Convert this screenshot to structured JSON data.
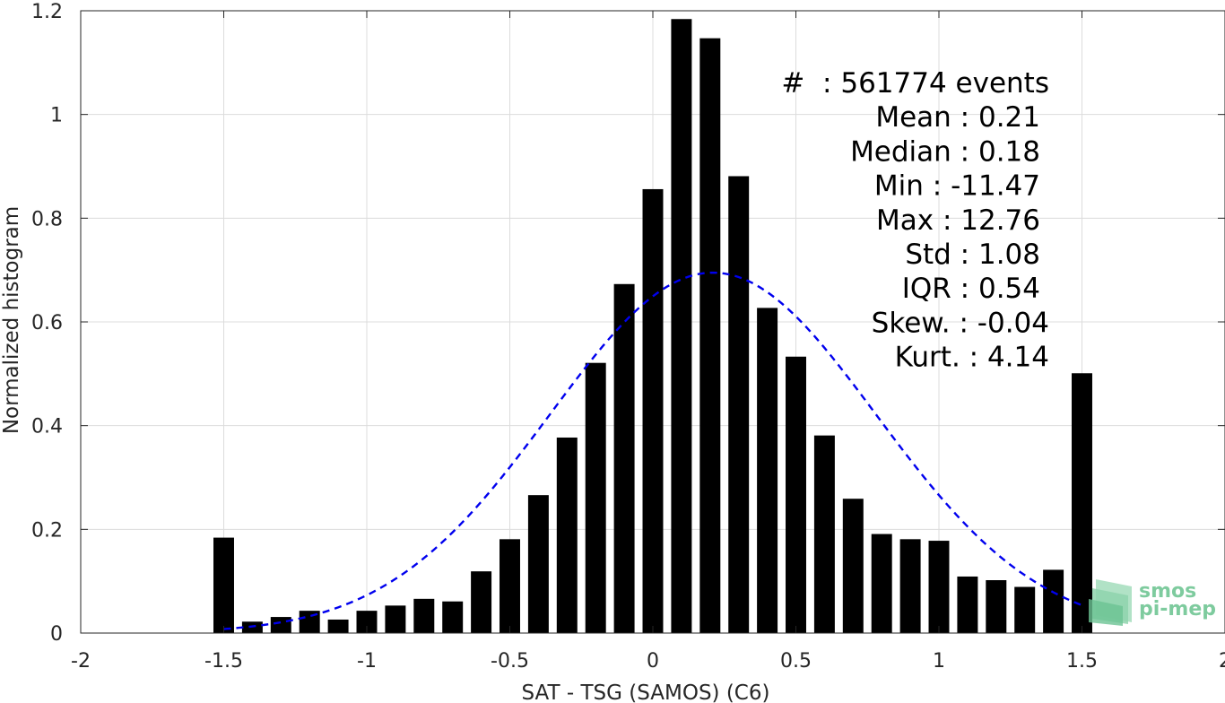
{
  "chart_data": {
    "type": "bar",
    "xlabel": "SAT - TSG (SAMOS) (C6)",
    "ylabel": "Normalized histogram",
    "xlim": [
      -2,
      2
    ],
    "ylim": [
      0,
      1.2
    ],
    "xticks": [
      -2,
      -1.5,
      -1,
      -0.5,
      0,
      0.5,
      1,
      1.5,
      2
    ],
    "xtick_labels": [
      "-2",
      "-1.5",
      "-1",
      "-0.5",
      "0",
      "0.5",
      "1",
      "1.5",
      "2"
    ],
    "yticks": [
      0,
      0.2,
      0.4,
      0.6,
      0.8,
      1,
      1.2
    ],
    "ytick_labels": [
      "0",
      "0.2",
      "0.4",
      "0.6",
      "0.8",
      "1",
      "1.2"
    ],
    "grid": true,
    "bar_color": "#000000",
    "bin_width": 0.1,
    "x": [
      -1.5,
      -1.4,
      -1.3,
      -1.2,
      -1.1,
      -1.0,
      -0.9,
      -0.8,
      -0.7,
      -0.6,
      -0.5,
      -0.4,
      -0.3,
      -0.2,
      -0.1,
      0.0,
      0.1,
      0.2,
      0.3,
      0.4,
      0.5,
      0.6,
      0.7,
      0.8,
      0.9,
      1.0,
      1.1,
      1.2,
      1.3,
      1.4,
      1.5
    ],
    "values": [
      0.184,
      0.022,
      0.031,
      0.043,
      0.026,
      0.043,
      0.053,
      0.066,
      0.061,
      0.119,
      0.181,
      0.266,
      0.377,
      0.521,
      0.673,
      0.856,
      1.184,
      1.147,
      0.881,
      0.627,
      0.533,
      0.381,
      0.259,
      0.191,
      0.181,
      0.178,
      0.109,
      0.102,
      0.089,
      0.122,
      0.501
    ],
    "fit": {
      "type": "normal",
      "mean": 0.21,
      "std": 0.57,
      "peak": 0.695,
      "x_range": [
        -1.5,
        1.5
      ],
      "color": "#0000ee",
      "style": "dashed"
    },
    "annotations": [
      "#  : 561774 events",
      "Mean : 0.21",
      "Median : 0.18",
      "Min : -11.47",
      "Max : 12.76",
      "Std : 1.08",
      "IQR : 0.54",
      "Skew. : -0.04",
      "Kurt. : 4.14"
    ]
  },
  "logo": {
    "line1": "smos",
    "line2": "pi-mep",
    "color": "#7ecb9e"
  }
}
